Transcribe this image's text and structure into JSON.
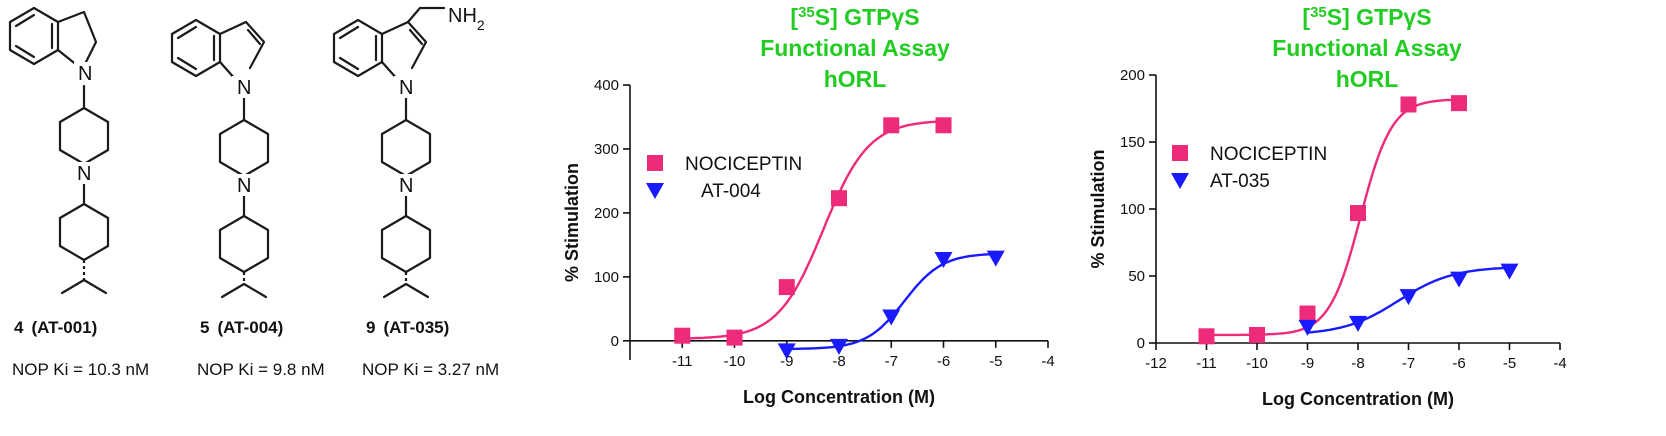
{
  "compounds": [
    {
      "number": "4",
      "code": "(AT-001)",
      "ki": "NOP Ki = 10.3 nM",
      "core": "indoline"
    },
    {
      "number": "5",
      "code": "(AT-004)",
      "ki": "NOP Ki = 9.8 nM",
      "core": "indole"
    },
    {
      "number": "9",
      "code": "(AT-035)",
      "ki": "NOP Ki = 3.27 nM",
      "core": "3-aminomethyl-indole",
      "substituent": "NH2"
    }
  ],
  "atoms": {
    "N": "N",
    "NH": "NH",
    "sub2": "2"
  },
  "chart_data": [
    {
      "type": "line",
      "title": {
        "line1_sup": "35",
        "line1_pre": "[",
        "line1_post": "S] GTPγS",
        "line2": "Functional Assay",
        "line3": "hORL"
      },
      "xlabel": "Log Concentration (M)",
      "ylabel": "% Stimulation",
      "xlim": [
        -12,
        -4
      ],
      "ylim": [
        -30,
        400
      ],
      "xticks": [
        -11,
        -10,
        -9,
        -8,
        -7,
        -6,
        -5,
        -4
      ],
      "yticks": [
        0,
        100,
        200,
        300,
        400
      ],
      "series": [
        {
          "name": "NOCICEPTIN",
          "color": "#ee2a7b",
          "marker": "square",
          "x": [
            -11,
            -10,
            -9,
            -8,
            -7,
            -6
          ],
          "y": [
            8,
            5,
            84,
            223,
            337,
            337
          ],
          "fit": {
            "bottom": 3,
            "top": 345,
            "logec50": -8.3,
            "hill": 1.0
          }
        },
        {
          "name": "AT-004",
          "color": "#1a1aff",
          "marker": "triangle-down",
          "x": [
            -9,
            -8,
            -7,
            -6,
            -5
          ],
          "y": [
            -15,
            -8,
            38,
            128,
            130
          ],
          "fit": {
            "bottom": -13,
            "top": 137,
            "logec50": -6.75,
            "hill": 1.2
          }
        }
      ],
      "legend_position": "upper-left"
    },
    {
      "type": "line",
      "title": {
        "line1_sup": "35",
        "line1_pre": "[",
        "line1_post": "S] GTPγS",
        "line2": "Functional Assay",
        "line3": "hORL"
      },
      "xlabel": "Log Concentration (M)",
      "ylabel": "% Stimulation",
      "xlim": [
        -12,
        -4
      ],
      "ylim": [
        0,
        200
      ],
      "xticks": [
        -12,
        -11,
        -10,
        -9,
        -8,
        -7,
        -6,
        -5,
        -4
      ],
      "yticks": [
        0,
        50,
        100,
        150,
        200
      ],
      "series": [
        {
          "name": "NOCICEPTIN",
          "color": "#ee2a7b",
          "marker": "square",
          "x": [
            -11,
            -10,
            -9,
            -8,
            -7,
            -6
          ],
          "y": [
            5,
            6,
            22,
            97,
            178,
            179
          ],
          "fit": {
            "bottom": 6,
            "top": 182,
            "logec50": -7.95,
            "hill": 1.4
          }
        },
        {
          "name": "AT-035",
          "color": "#1a1aff",
          "marker": "triangle-down",
          "x": [
            -9,
            -8,
            -7,
            -6,
            -5
          ],
          "y": [
            12,
            15,
            35,
            48,
            54
          ],
          "fit": {
            "bottom": 6,
            "top": 57,
            "logec50": -7.2,
            "hill": 0.8
          }
        }
      ],
      "legend_position": "upper-left"
    }
  ]
}
